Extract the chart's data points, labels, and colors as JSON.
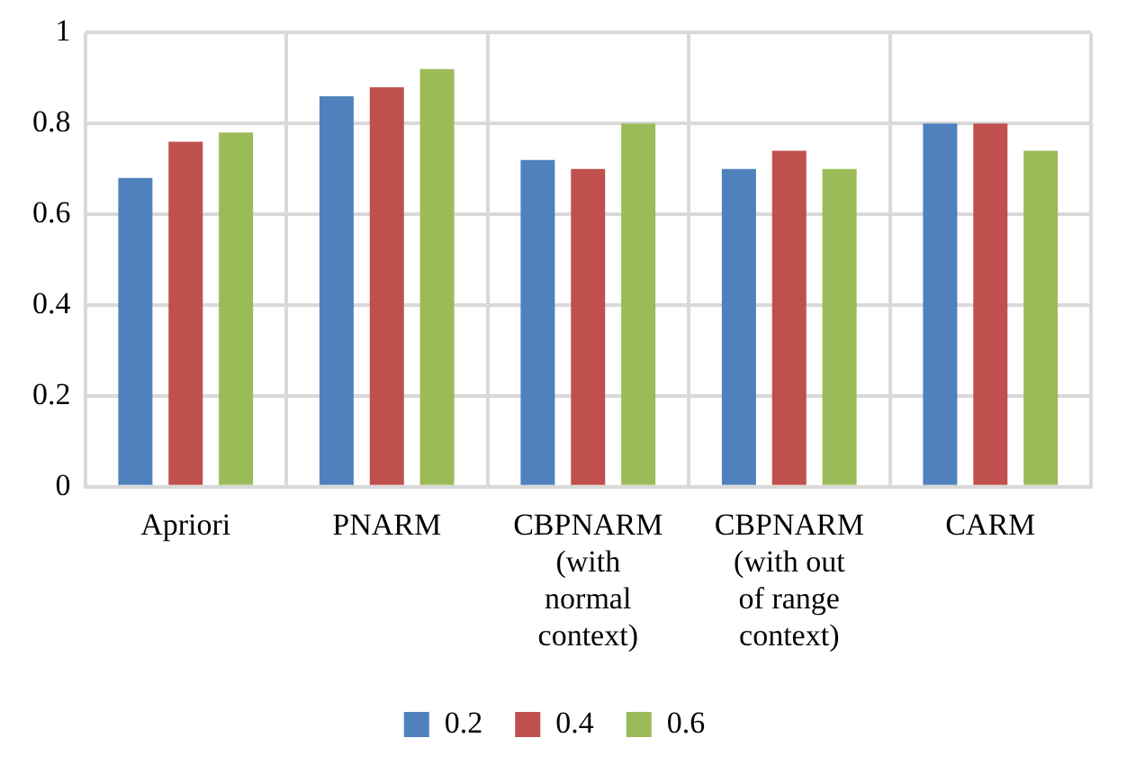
{
  "chart_data": {
    "type": "bar",
    "categories": [
      "Apriori",
      "PNARM",
      "CBPNARM (with normal context)",
      "CBPNARM (with out of range context)",
      "CARM"
    ],
    "series": [
      {
        "name": "0.2",
        "color": "#4f81bd",
        "values": [
          0.68,
          0.86,
          0.72,
          0.7,
          0.8
        ]
      },
      {
        "name": "0.4",
        "color": "#c0504d",
        "values": [
          0.76,
          0.88,
          0.7,
          0.74,
          0.8
        ]
      },
      {
        "name": "0.6",
        "color": "#9bbb59",
        "values": [
          0.78,
          0.92,
          0.8,
          0.7,
          0.74
        ]
      }
    ],
    "ylim": [
      0,
      1
    ],
    "yticks": [
      0,
      0.2,
      0.4,
      0.6,
      0.8,
      1
    ],
    "grid": true,
    "legend": "bottom"
  }
}
